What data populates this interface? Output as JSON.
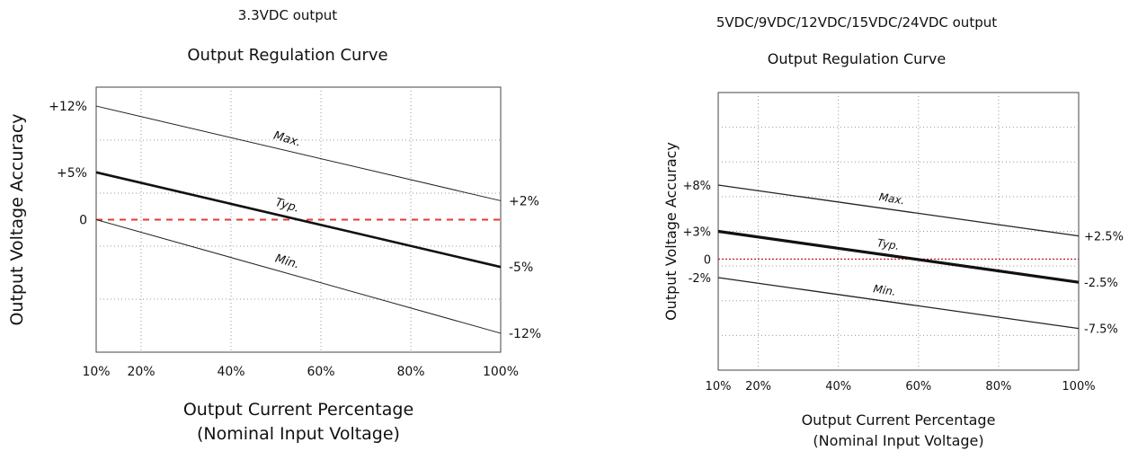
{
  "chart_data": [
    {
      "type": "line",
      "heading": "3.3VDC output",
      "title": "Output Regulation Curve",
      "xlabel": "Output Current Percentage",
      "xlabel2": "(Nominal Input Voltage)",
      "ylabel": "Output Voltage Accuracy",
      "x_ticks": [
        "10%",
        "20%",
        "40%",
        "60%",
        "80%",
        "100%"
      ],
      "xlim": [
        10,
        100
      ],
      "ylim": [
        -14,
        14
      ],
      "grid": true,
      "series": [
        {
          "name": "Max.",
          "x": [
            10,
            100
          ],
          "y": [
            12,
            2
          ],
          "style": "thin",
          "color": "#222222"
        },
        {
          "name": "Typ.",
          "x": [
            10,
            100
          ],
          "y": [
            5,
            -5
          ],
          "style": "bold",
          "color": "#111111"
        },
        {
          "name": "Min.",
          "x": [
            10,
            100
          ],
          "y": [
            0,
            -12
          ],
          "style": "thin",
          "color": "#222222"
        }
      ],
      "zero_line": {
        "y": 0,
        "color": "#e53935"
      },
      "left_labels": [
        {
          "text": "+12%",
          "y": 12
        },
        {
          "text": "+5%",
          "y": 5
        },
        {
          "text": "0",
          "y": 0
        }
      ],
      "right_labels": [
        {
          "text": "+2%",
          "y": 2
        },
        {
          "text": "-5%",
          "y": -5
        },
        {
          "text": "-12%",
          "y": -12
        }
      ]
    },
    {
      "type": "line",
      "heading": "5VDC/9VDC/12VDC/15VDC/24VDC output",
      "title": "Output Regulation Curve",
      "xlabel": "Output Current Percentage",
      "xlabel2": "(Nominal Input Voltage)",
      "ylabel": "Output Voltage Accuracy",
      "x_ticks": [
        "10%",
        "20%",
        "40%",
        "60%",
        "80%",
        "100%"
      ],
      "xlim": [
        10,
        100
      ],
      "ylim": [
        -12,
        18
      ],
      "grid": true,
      "series": [
        {
          "name": "Max.",
          "x": [
            10,
            100
          ],
          "y": [
            8,
            2.5
          ],
          "style": "thin",
          "color": "#222222"
        },
        {
          "name": "Typ.",
          "x": [
            10,
            100
          ],
          "y": [
            3,
            -2.5
          ],
          "style": "bold",
          "color": "#111111"
        },
        {
          "name": "Min.",
          "x": [
            10,
            100
          ],
          "y": [
            -2,
            -7.5
          ],
          "style": "thin",
          "color": "#222222"
        }
      ],
      "zero_line": {
        "y": 0,
        "color": "#c62828"
      },
      "left_labels": [
        {
          "text": "+8%",
          "y": 8
        },
        {
          "text": "+3%",
          "y": 3
        },
        {
          "text": "0",
          "y": 0
        },
        {
          "text": "-2%",
          "y": -2
        }
      ],
      "right_labels": [
        {
          "text": "+2.5%",
          "y": 2.5
        },
        {
          "text": "-2.5%",
          "y": -2.5
        },
        {
          "text": "-7.5%",
          "y": -7.5
        }
      ]
    }
  ]
}
